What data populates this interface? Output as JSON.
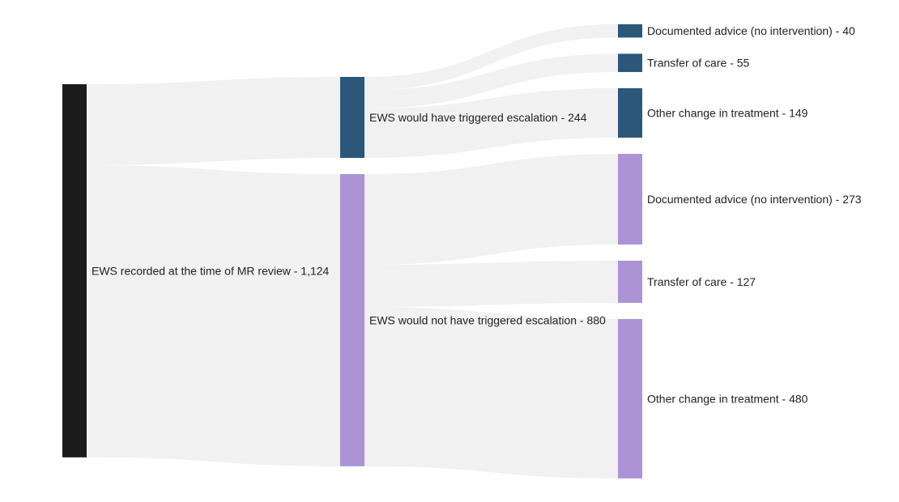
{
  "chart_data": {
    "type": "sankey",
    "colors": {
      "root": "#1b1b1b",
      "triggered": "#2b5779",
      "not_triggered": "#ab93d6",
      "link": "#f1f1f1"
    },
    "nodes": [
      {
        "id": "root",
        "label": "EWS recorded at the time of MR review - 1,124",
        "value": 1124,
        "column": 0,
        "color": "#1b1b1b"
      },
      {
        "id": "trig",
        "label": "EWS would have triggered escalation - 244",
        "value": 244,
        "column": 1,
        "color": "#2b5779"
      },
      {
        "id": "notrig",
        "label": "EWS would not have triggered escalation - 880",
        "value": 880,
        "column": 1,
        "color": "#ab93d6"
      },
      {
        "id": "t_adv",
        "label": "Documented advice (no intervention) - 40",
        "value": 40,
        "column": 2,
        "color": "#2b5779"
      },
      {
        "id": "t_tra",
        "label": "Transfer of care - 55",
        "value": 55,
        "column": 2,
        "color": "#2b5779"
      },
      {
        "id": "t_oth",
        "label": "Other change in treatment - 149",
        "value": 149,
        "column": 2,
        "color": "#2b5779"
      },
      {
        "id": "n_adv",
        "label": "Documented advice (no intervention) - 273",
        "value": 273,
        "column": 2,
        "color": "#ab93d6"
      },
      {
        "id": "n_tra",
        "label": "Transfer of care - 127",
        "value": 127,
        "column": 2,
        "color": "#ab93d6"
      },
      {
        "id": "n_oth",
        "label": "Other change in treatment - 480",
        "value": 480,
        "column": 2,
        "color": "#ab93d6"
      }
    ],
    "links": [
      {
        "source": "root",
        "target": "trig",
        "value": 244
      },
      {
        "source": "root",
        "target": "notrig",
        "value": 880
      },
      {
        "source": "trig",
        "target": "t_adv",
        "value": 40
      },
      {
        "source": "trig",
        "target": "t_tra",
        "value": 55
      },
      {
        "source": "trig",
        "target": "t_oth",
        "value": 149
      },
      {
        "source": "notrig",
        "target": "n_adv",
        "value": 273
      },
      {
        "source": "notrig",
        "target": "n_tra",
        "value": 127
      },
      {
        "source": "notrig",
        "target": "n_oth",
        "value": 480
      }
    ]
  }
}
